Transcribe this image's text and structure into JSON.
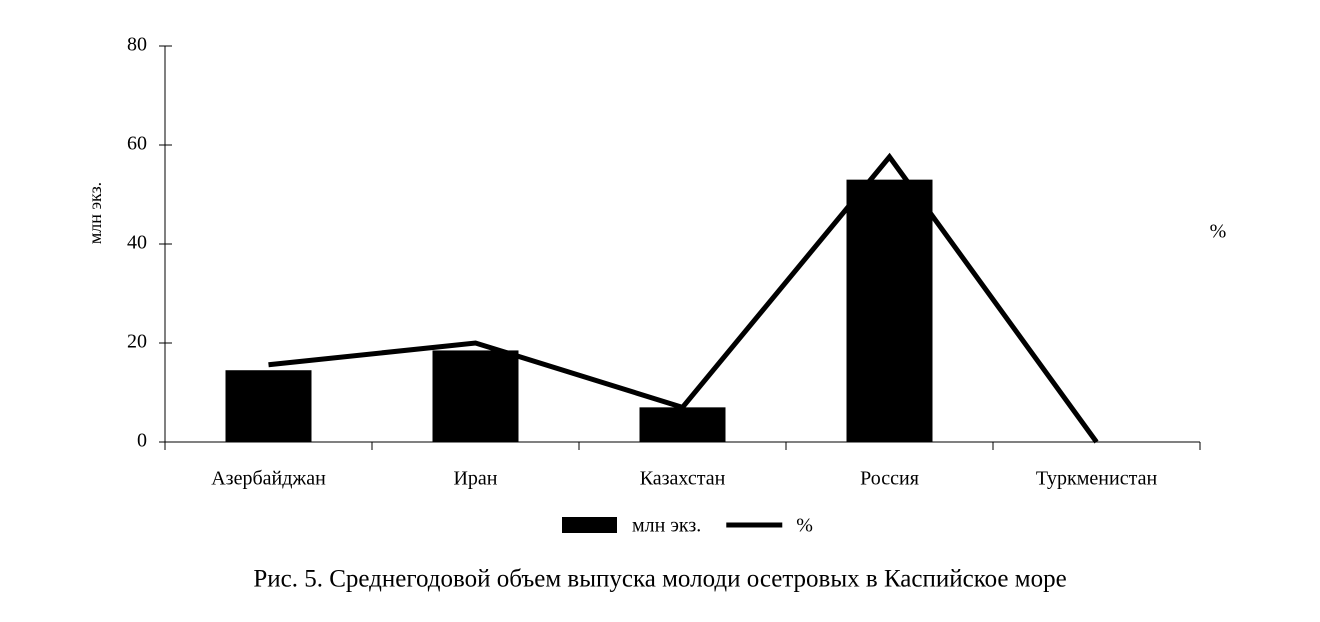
{
  "chart_data": {
    "type": "bar",
    "title": "Рис. 5. Среднегодовой объем выпуска молоди осетровых в Каспийское море",
    "y_label": "млн экз.",
    "y2_label": "%",
    "categories": [
      "Азербайджан",
      "Иран",
      "Казахстан",
      "Россия",
      "Туркменистан"
    ],
    "series": [
      {
        "name": "млн экз.",
        "type": "bar",
        "color": "#000000",
        "values": [
          14.5,
          18.5,
          7,
          53,
          0
        ]
      },
      {
        "name": "%",
        "type": "line",
        "color": "#000000",
        "values": [
          15.6,
          20,
          7,
          57.6,
          0
        ]
      }
    ],
    "ylim": [
      0,
      80
    ],
    "yticks": [
      0,
      20,
      40,
      60,
      80
    ],
    "grid": false
  }
}
